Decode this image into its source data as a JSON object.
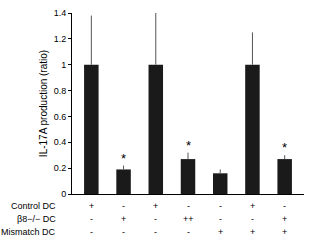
{
  "chart_data": {
    "type": "bar",
    "y_label": "IL-17A production (ratio)",
    "categories": [
      null,
      null,
      null,
      null,
      null,
      null,
      null
    ],
    "values": [
      1,
      0.19,
      1,
      0.27,
      0.16,
      1,
      0.27
    ],
    "errors": [
      0.38,
      0.03,
      0.4,
      0.05,
      0.03,
      0.25,
      0.03
    ],
    "significance": [
      null,
      "*",
      null,
      "*",
      null,
      null,
      "*"
    ],
    "color": "#1a1a1a",
    "ylim": [
      0,
      1.4
    ],
    "yticks": [
      0,
      0.2,
      0.4,
      0.6,
      0.8,
      1,
      1.2,
      1.4
    ],
    "grid": false,
    "tick_labels": "y",
    "condition_table": [
      {
        "label": "Control DC",
        "marks": [
          "+",
          "-",
          "+",
          "-",
          "-",
          "+",
          "-"
        ]
      },
      {
        "label": "β8−/− DC",
        "marks": [
          "-",
          "+",
          "-",
          "++",
          "-",
          "-",
          "+"
        ]
      },
      {
        "label": "Mismatch DC",
        "marks": [
          "-",
          "-",
          "-",
          "-",
          "+",
          "+",
          "+"
        ]
      }
    ]
  }
}
